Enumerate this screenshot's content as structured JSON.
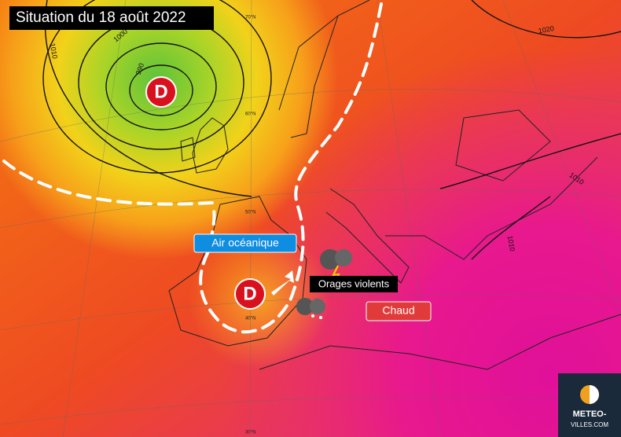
{
  "header": {
    "title": "Situation du 18 août 2022"
  },
  "map": {
    "lows": [
      {
        "label": "D"
      },
      {
        "label": "D"
      }
    ],
    "annotations": {
      "oceanic": "Air océanique",
      "storms": "Orages violents",
      "heat": "Chaud"
    },
    "isobar_labels": [
      "1010",
      "1000",
      "990",
      "1020",
      "1010",
      "1010"
    ],
    "latitude_labels": [
      "70°N",
      "60°N",
      "50°N",
      "40°N",
      "30°N"
    ]
  },
  "logo": {
    "line1": "METEO-",
    "line2": "VILLES.COM"
  }
}
